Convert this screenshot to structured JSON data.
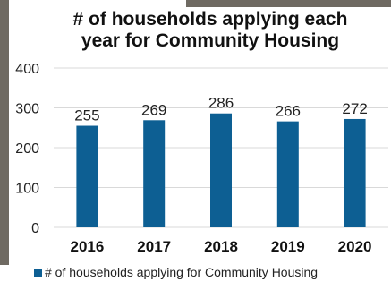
{
  "chart_data": {
    "type": "bar",
    "title_line1": "# of households applying each",
    "title_line2": "year for Community Housing",
    "categories": [
      "2016",
      "2017",
      "2018",
      "2019",
      "2020"
    ],
    "series": [
      {
        "name": "# of households applying for Community Housing",
        "values": [
          255,
          269,
          286,
          266,
          272
        ]
      }
    ],
    "ylim": [
      0,
      400
    ],
    "yticks": [
      "0",
      "100",
      "200",
      "300",
      "400"
    ],
    "data_labels": [
      "255",
      "269",
      "286",
      "266",
      "272"
    ],
    "grid": true,
    "legend": "bottom",
    "colors": {
      "bar": "#0d5f93",
      "grid": "#d9d9d9",
      "frame": "#6f6a62"
    }
  }
}
